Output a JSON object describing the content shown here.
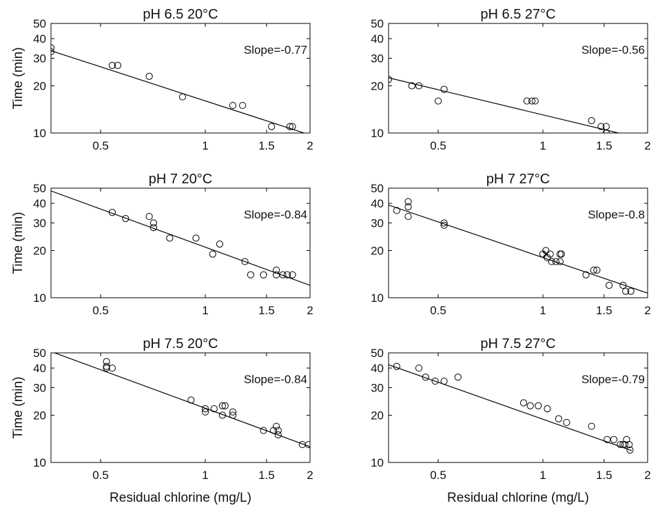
{
  "figure": {
    "xlabel": "Residual chlorine (mg/L)",
    "ylabel": "Time (min)",
    "xticks": [
      0.5,
      1,
      1.5,
      2
    ],
    "yticks": [
      10,
      20,
      30,
      40,
      50
    ],
    "colors": {
      "axes": "#000000",
      "marker": "#000000",
      "fit": "#000000",
      "background": "#ffffff"
    }
  },
  "chart_data": [
    {
      "type": "scatter",
      "title": "pH 6.5 20°C",
      "annotation": "Slope=-0.77",
      "xscale": "log",
      "yscale": "log",
      "xlim": [
        0.36,
        2
      ],
      "ylim": [
        10,
        50
      ],
      "points": {
        "x": [
          0.36,
          0.36,
          0.54,
          0.56,
          0.69,
          0.86,
          1.2,
          1.28,
          1.55,
          1.75,
          1.78
        ],
        "y": [
          35,
          33,
          27,
          27,
          23,
          17,
          15,
          15,
          11,
          11,
          11
        ]
      },
      "fit": {
        "x": [
          0.36,
          1.95
        ],
        "y": [
          33.5,
          9.9
        ]
      }
    },
    {
      "type": "scatter",
      "title": "pH 6.5 27°C",
      "annotation": "Slope=-0.56",
      "xscale": "log",
      "yscale": "log",
      "xlim": [
        0.36,
        2
      ],
      "ylim": [
        10,
        50
      ],
      "points": {
        "x": [
          0.36,
          0.42,
          0.44,
          0.5,
          0.52,
          0.9,
          0.93,
          0.95,
          1.38,
          1.47,
          1.52,
          1.52
        ],
        "y": [
          22,
          20,
          20,
          16,
          19,
          16,
          16,
          16,
          12,
          11,
          11,
          10
        ]
      },
      "fit": {
        "x": [
          0.36,
          1.68
        ],
        "y": [
          22.5,
          9.9
        ]
      }
    },
    {
      "type": "scatter",
      "title": "pH 7 20°C",
      "annotation": "Slope=-0.84",
      "xscale": "log",
      "yscale": "log",
      "xlim": [
        0.36,
        2
      ],
      "ylim": [
        10,
        50
      ],
      "points": {
        "x": [
          0.54,
          0.59,
          0.69,
          0.71,
          0.71,
          0.79,
          0.94,
          1.05,
          1.1,
          1.3,
          1.35,
          1.47,
          1.6,
          1.6,
          1.67,
          1.72,
          1.78
        ],
        "y": [
          35,
          32,
          33,
          30,
          28,
          24,
          24,
          19,
          22,
          17,
          14,
          14,
          15,
          14,
          14,
          14,
          14
        ]
      },
      "fit": {
        "x": [
          0.36,
          2
        ],
        "y": [
          48,
          12
        ]
      }
    },
    {
      "type": "scatter",
      "title": "pH 7 27°C",
      "annotation": "Slope=-0.8",
      "xscale": "log",
      "yscale": "log",
      "xlim": [
        0.36,
        2
      ],
      "ylim": [
        10,
        50
      ],
      "points": {
        "x": [
          0.38,
          0.41,
          0.41,
          0.41,
          0.52,
          0.52,
          1.0,
          1.02,
          1.03,
          1.05,
          1.06,
          1.09,
          1.12,
          1.13,
          1.12,
          1.33,
          1.4,
          1.43,
          1.55,
          1.7,
          1.73,
          1.79
        ],
        "y": [
          36,
          41,
          38,
          33,
          30,
          29,
          19,
          20,
          18,
          19,
          17,
          17,
          19,
          19,
          17,
          14,
          15,
          15,
          12,
          12,
          11,
          11
        ],
        "crosses": {
          "x": [
            1.02
          ],
          "y": [
            19
          ]
        }
      },
      "fit": {
        "x": [
          0.36,
          2
        ],
        "y": [
          39,
          10.7
        ]
      }
    },
    {
      "type": "scatter",
      "title": "pH 7.5 20°C",
      "annotation": "Slope=-0.84",
      "xscale": "log",
      "yscale": "log",
      "xlim": [
        0.36,
        2
      ],
      "ylim": [
        10,
        50
      ],
      "points": {
        "x": [
          0.52,
          0.52,
          0.52,
          0.54,
          0.91,
          1.0,
          1.0,
          1.06,
          1.12,
          1.14,
          1.12,
          1.2,
          1.2,
          1.47,
          1.57,
          1.6,
          1.62,
          1.62,
          1.9,
          1.98
        ],
        "y": [
          44,
          41,
          40,
          40,
          25,
          22,
          21,
          22,
          23,
          23,
          20,
          21,
          20,
          16,
          16,
          17,
          16,
          15,
          13,
          13
        ]
      },
      "fit": {
        "x": [
          0.36,
          2
        ],
        "y": [
          51,
          12.6
        ]
      }
    },
    {
      "type": "scatter",
      "title": "pH 7.5 27°C",
      "annotation": "Slope=-0.79",
      "xscale": "log",
      "yscale": "log",
      "xlim": [
        0.36,
        2
      ],
      "ylim": [
        10,
        50
      ],
      "points": {
        "x": [
          0.38,
          0.44,
          0.46,
          0.49,
          0.52,
          0.57,
          0.88,
          0.92,
          0.97,
          1.03,
          1.11,
          1.17,
          1.38,
          1.53,
          1.6,
          1.67,
          1.7,
          1.72,
          1.74,
          1.77,
          1.78
        ],
        "y": [
          41,
          40,
          35,
          33,
          33,
          35,
          24,
          23,
          23,
          22,
          19,
          18,
          17,
          14,
          14,
          13,
          13,
          13,
          14,
          13,
          12
        ]
      },
      "fit": {
        "x": [
          0.36,
          1.8
        ],
        "y": [
          42,
          11.9
        ]
      }
    }
  ]
}
